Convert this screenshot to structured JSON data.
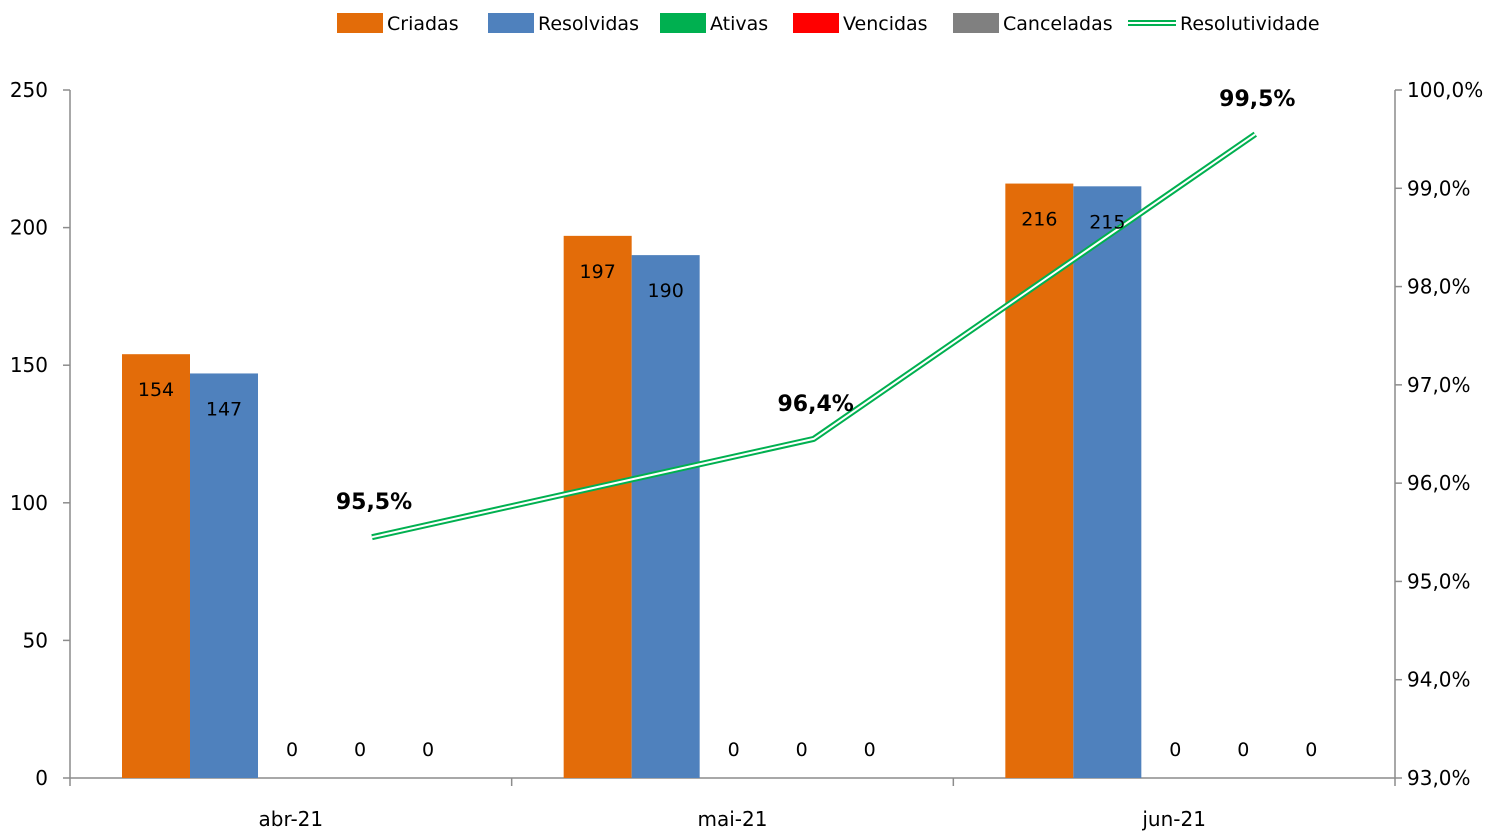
{
  "chart_data": {
    "type": "bar",
    "categories": [
      "abr-21",
      "mai-21",
      "jun-21"
    ],
    "series": [
      {
        "name": "Criadas",
        "values": [
          154,
          197,
          216
        ],
        "color": "#E36C09",
        "label_values": [
          "154",
          "197",
          "216"
        ]
      },
      {
        "name": "Resolvidas",
        "values": [
          147,
          190,
          215
        ],
        "color": "#4F81BD",
        "label_values": [
          "147",
          "190",
          "215"
        ]
      },
      {
        "name": "Ativas",
        "values": [
          0,
          0,
          0
        ],
        "color": "#00B050",
        "label_values": [
          "0",
          "0",
          "0"
        ]
      },
      {
        "name": "Vencidas",
        "values": [
          0,
          0,
          0
        ],
        "color": "#FF0000",
        "label_values": [
          "0",
          "0",
          "0"
        ]
      },
      {
        "name": "Canceladas",
        "values": [
          0,
          0,
          0
        ],
        "color": "#808080",
        "label_values": [
          "0",
          "0",
          "0"
        ]
      }
    ],
    "line_series": {
      "name": "Resolutividade",
      "values": [
        95.45,
        96.45,
        99.55
      ],
      "labels": [
        "95,5%",
        "96,4%",
        "99,5%"
      ],
      "color": "#00B050",
      "axis": "right"
    },
    "ylim": [
      0,
      250
    ],
    "y_ticks": [
      "0",
      "50",
      "100",
      "150",
      "200",
      "250"
    ],
    "y2lim": [
      93.0,
      100.0
    ],
    "y2_ticks": [
      "93,0%",
      "94,0%",
      "95,0%",
      "96,0%",
      "97,0%",
      "98,0%",
      "99,0%",
      "100,0%"
    ],
    "legend_position": "top",
    "grid": false,
    "title": "",
    "xlabel": "",
    "ylabel": ""
  }
}
